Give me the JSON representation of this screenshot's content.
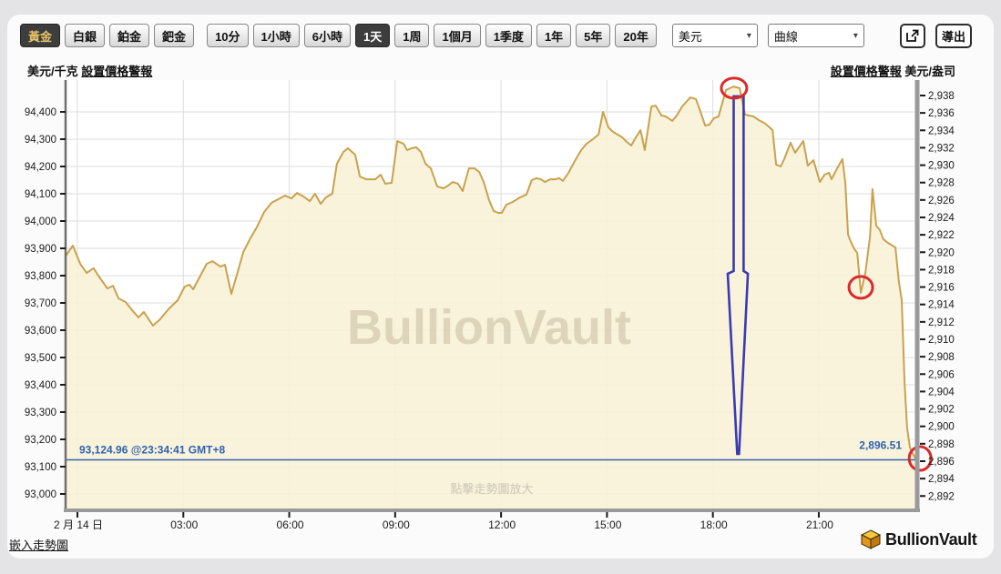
{
  "toolbar": {
    "metal_buttons": [
      {
        "key": "gold",
        "label": "黃金",
        "selected": true
      },
      {
        "key": "silver",
        "label": "白銀",
        "selected": false
      },
      {
        "key": "platinum",
        "label": "鉑金",
        "selected": false
      },
      {
        "key": "palladium",
        "label": "鈀金",
        "selected": false
      }
    ],
    "period_buttons": [
      {
        "key": "10m",
        "label": "10分",
        "selected": false
      },
      {
        "key": "1h",
        "label": "1小時",
        "selected": false
      },
      {
        "key": "6h",
        "label": "6小時",
        "selected": false
      },
      {
        "key": "1d",
        "label": "1天",
        "selected": true
      },
      {
        "key": "1w",
        "label": "1周",
        "selected": false
      },
      {
        "key": "1mo",
        "label": "1個月",
        "selected": false
      },
      {
        "key": "1q",
        "label": "1季度",
        "selected": false
      },
      {
        "key": "1y",
        "label": "1年",
        "selected": false
      },
      {
        "key": "5y",
        "label": "5年",
        "selected": false
      },
      {
        "key": "20y",
        "label": "20年",
        "selected": false
      }
    ],
    "currency_selected": "美元",
    "chart_type_selected": "曲線",
    "export_label": "導出"
  },
  "header": {
    "left_unit": "美元/千克",
    "left_alert_link": "設置價格警報",
    "right_alert_link": "設置價格警報",
    "right_unit": "美元/盎司"
  },
  "footer": {
    "embed_link": "嵌入走勢圖",
    "brand": "BullionVault"
  },
  "chart": {
    "watermark": "BullionVault",
    "hint": "點擊走勢圖放大",
    "price_line": {
      "left_label": "93,124.96 @23:34:41 GMT+8",
      "right_label": "2,896.51",
      "value_usd_kg": 93124.96
    },
    "colors": {
      "line": "#c8a24e",
      "fill": "#f9f1d6",
      "grid": "#dcdcdc",
      "axis_bar": "#9a9a9a",
      "axis_left": "#6e6e6e",
      "tick": "#1a1a1a",
      "label": "#1a1a1a",
      "price_blue": "#2e62b0",
      "spike_blue": "#3a3ab2",
      "highlight_red": "#d92b2b",
      "watermark": "rgba(154,143,112,0.30)",
      "hint": "#c9c5b6"
    }
  },
  "chart_data": {
    "type": "area",
    "x_axis": {
      "label_date": "2 月 14 日",
      "unit": "hours",
      "ticks": [
        {
          "t": 0,
          "label": "2 月 14 日"
        },
        {
          "t": 3,
          "label": "03:00"
        },
        {
          "t": 6,
          "label": "06:00"
        },
        {
          "t": 9,
          "label": "09:00"
        },
        {
          "t": 12,
          "label": "12:00"
        },
        {
          "t": 15,
          "label": "15:00"
        },
        {
          "t": 18,
          "label": "18:00"
        },
        {
          "t": 21,
          "label": "21:00"
        }
      ]
    },
    "y_left": {
      "unit": "美元/千克",
      "min": 93000,
      "max": 94400,
      "step": 100,
      "labels": [
        "94,400",
        "94,300",
        "94,200",
        "94,100",
        "94,000",
        "93,900",
        "93,800",
        "93,700",
        "93,600",
        "93,500",
        "93,400",
        "93,300",
        "93,200",
        "93,100",
        "93,000"
      ]
    },
    "y_right": {
      "unit": "美元/盎司",
      "min": 2892,
      "max": 2938,
      "step": 2,
      "labels": [
        "2,938",
        "2,936",
        "2,934",
        "2,932",
        "2,930",
        "2,928",
        "2,926",
        "2,924",
        "2,922",
        "2,920",
        "2,918",
        "2,916",
        "2,914",
        "2,912",
        "2,910",
        "2,908",
        "2,906",
        "2,904",
        "2,902",
        "2,900",
        "2,898",
        "2,896",
        "2,894",
        "2,892"
      ]
    },
    "series": [
      {
        "name": "黃金 美元/千克",
        "points": [
          [
            -0.34,
            93870
          ],
          [
            -0.13,
            93910
          ],
          [
            0.08,
            93843
          ],
          [
            0.26,
            93810
          ],
          [
            0.46,
            93827
          ],
          [
            0.59,
            93800
          ],
          [
            0.85,
            93753
          ],
          [
            1.01,
            93763
          ],
          [
            1.16,
            93717
          ],
          [
            1.37,
            93703
          ],
          [
            1.55,
            93673
          ],
          [
            1.73,
            93647
          ],
          [
            1.88,
            93667
          ],
          [
            2.14,
            93617
          ],
          [
            2.32,
            93637
          ],
          [
            2.58,
            93677
          ],
          [
            2.84,
            93710
          ],
          [
            3.04,
            93760
          ],
          [
            3.17,
            93767
          ],
          [
            3.28,
            93750
          ],
          [
            3.66,
            93843
          ],
          [
            3.82,
            93853
          ],
          [
            4.05,
            93833
          ],
          [
            4.18,
            93840
          ],
          [
            4.36,
            93733
          ],
          [
            4.51,
            93800
          ],
          [
            4.7,
            93887
          ],
          [
            4.9,
            93937
          ],
          [
            5.08,
            93977
          ],
          [
            5.29,
            94033
          ],
          [
            5.5,
            94067
          ],
          [
            5.73,
            94083
          ],
          [
            5.88,
            94093
          ],
          [
            6.06,
            94083
          ],
          [
            6.22,
            94103
          ],
          [
            6.4,
            94090
          ],
          [
            6.58,
            94073
          ],
          [
            6.73,
            94100
          ],
          [
            6.89,
            94063
          ],
          [
            7.04,
            94087
          ],
          [
            7.22,
            94100
          ],
          [
            7.35,
            94210
          ],
          [
            7.53,
            94253
          ],
          [
            7.66,
            94267
          ],
          [
            7.87,
            94243
          ],
          [
            8.0,
            94163
          ],
          [
            8.18,
            94153
          ],
          [
            8.44,
            94153
          ],
          [
            8.59,
            94170
          ],
          [
            8.72,
            94137
          ],
          [
            8.9,
            94140
          ],
          [
            9.06,
            94293
          ],
          [
            9.24,
            94283
          ],
          [
            9.34,
            94260
          ],
          [
            9.47,
            94267
          ],
          [
            9.6,
            94270
          ],
          [
            9.73,
            94253
          ],
          [
            9.86,
            94210
          ],
          [
            10.01,
            94193
          ],
          [
            10.19,
            94127
          ],
          [
            10.37,
            94120
          ],
          [
            10.5,
            94130
          ],
          [
            10.63,
            94143
          ],
          [
            10.78,
            94137
          ],
          [
            10.91,
            94110
          ],
          [
            11.09,
            94193
          ],
          [
            11.25,
            94193
          ],
          [
            11.38,
            94180
          ],
          [
            11.51,
            94143
          ],
          [
            11.66,
            94077
          ],
          [
            11.79,
            94037
          ],
          [
            11.92,
            94030
          ],
          [
            12.02,
            94030
          ],
          [
            12.15,
            94060
          ],
          [
            12.33,
            94070
          ],
          [
            12.54,
            94087
          ],
          [
            12.72,
            94097
          ],
          [
            12.87,
            94150
          ],
          [
            13.0,
            94157
          ],
          [
            13.13,
            94153
          ],
          [
            13.24,
            94143
          ],
          [
            13.39,
            94153
          ],
          [
            13.54,
            94153
          ],
          [
            13.65,
            94157
          ],
          [
            13.75,
            94147
          ],
          [
            13.91,
            94177
          ],
          [
            14.09,
            94220
          ],
          [
            14.27,
            94260
          ],
          [
            14.42,
            94283
          ],
          [
            14.6,
            94300
          ],
          [
            14.76,
            94317
          ],
          [
            14.89,
            94400
          ],
          [
            15.04,
            94343
          ],
          [
            15.17,
            94327
          ],
          [
            15.3,
            94317
          ],
          [
            15.43,
            94307
          ],
          [
            15.56,
            94290
          ],
          [
            15.69,
            94277
          ],
          [
            15.82,
            94307
          ],
          [
            15.95,
            94333
          ],
          [
            16.07,
            94260
          ],
          [
            16.26,
            94420
          ],
          [
            16.38,
            94423
          ],
          [
            16.54,
            94387
          ],
          [
            16.67,
            94383
          ],
          [
            16.85,
            94367
          ],
          [
            16.98,
            94387
          ],
          [
            17.13,
            94420
          ],
          [
            17.36,
            94453
          ],
          [
            17.52,
            94447
          ],
          [
            17.65,
            94400
          ],
          [
            17.78,
            94350
          ],
          [
            17.9,
            94353
          ],
          [
            18.03,
            94377
          ],
          [
            18.16,
            94383
          ],
          [
            18.37,
            94480
          ],
          [
            18.58,
            94493
          ],
          [
            18.76,
            94487
          ],
          [
            18.91,
            94390
          ],
          [
            19.15,
            94383
          ],
          [
            19.3,
            94370
          ],
          [
            19.48,
            94357
          ],
          [
            19.61,
            94343
          ],
          [
            19.69,
            94333
          ],
          [
            19.79,
            94207
          ],
          [
            19.92,
            94200
          ],
          [
            20.02,
            94227
          ],
          [
            20.2,
            94287
          ],
          [
            20.33,
            94250
          ],
          [
            20.56,
            94293
          ],
          [
            20.69,
            94203
          ],
          [
            20.85,
            94223
          ],
          [
            21.03,
            94143
          ],
          [
            21.16,
            94170
          ],
          [
            21.29,
            94177
          ],
          [
            21.36,
            94153
          ],
          [
            21.52,
            94193
          ],
          [
            21.67,
            94227
          ],
          [
            21.75,
            94143
          ],
          [
            21.83,
            93950
          ],
          [
            21.91,
            93923
          ],
          [
            22.01,
            93897
          ],
          [
            22.09,
            93883
          ],
          [
            22.19,
            93737
          ],
          [
            22.32,
            93810
          ],
          [
            22.45,
            93943
          ],
          [
            22.52,
            94117
          ],
          [
            22.63,
            93983
          ],
          [
            22.73,
            93967
          ],
          [
            22.83,
            93933
          ],
          [
            22.96,
            93920
          ],
          [
            23.09,
            93910
          ],
          [
            23.17,
            93903
          ],
          [
            23.27,
            93777
          ],
          [
            23.35,
            93710
          ],
          [
            23.43,
            93410
          ],
          [
            23.5,
            93243
          ],
          [
            23.58,
            93170
          ],
          [
            23.68,
            93143
          ],
          [
            23.76,
            93125
          ]
        ]
      }
    ],
    "annotations": {
      "price_line": {
        "value_usd_kg": 93124.96,
        "value_usd_oz": 2896.51,
        "time_label": "@23:34:41 GMT+8"
      },
      "flash_spike_polygon": [
        [
          18.59,
          94457
        ],
        [
          18.87,
          94457
        ],
        [
          18.87,
          93817
        ],
        [
          18.99,
          93807
        ],
        [
          18.74,
          93147
        ],
        [
          18.69,
          93147
        ],
        [
          18.42,
          93807
        ],
        [
          18.59,
          93817
        ]
      ],
      "highlight_circles": [
        {
          "t": 18.6,
          "v": 94487,
          "note": "day high"
        },
        {
          "t": 22.19,
          "v": 93757,
          "note": "late dip"
        },
        {
          "t": 23.87,
          "v": 93130,
          "note": "last price at axis"
        }
      ]
    },
    "legend": null,
    "grid": true
  }
}
